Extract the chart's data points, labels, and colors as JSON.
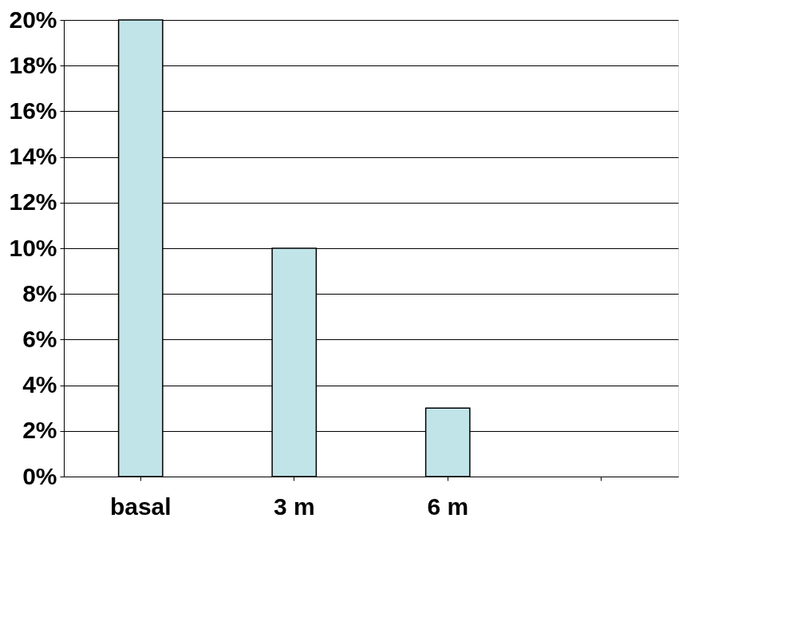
{
  "chart_data": {
    "type": "bar",
    "categories": [
      "basal",
      "3 m",
      "6 m",
      null
    ],
    "values": [
      20,
      10,
      3,
      null
    ],
    "color": "#c0e4e8",
    "ylim": [
      0,
      20
    ],
    "yticks": [
      {
        "value": 0,
        "label": "0%"
      },
      {
        "value": 2,
        "label": "2%"
      },
      {
        "value": 4,
        "label": "4%"
      },
      {
        "value": 6,
        "label": "6%"
      },
      {
        "value": 8,
        "label": "8%"
      },
      {
        "value": 10,
        "label": "10%"
      },
      {
        "value": 12,
        "label": "12%"
      },
      {
        "value": 14,
        "label": "14%"
      },
      {
        "value": 16,
        "label": "16%"
      },
      {
        "value": 18,
        "label": "18%"
      },
      {
        "value": 20,
        "label": "20%"
      }
    ],
    "grid": "y"
  }
}
